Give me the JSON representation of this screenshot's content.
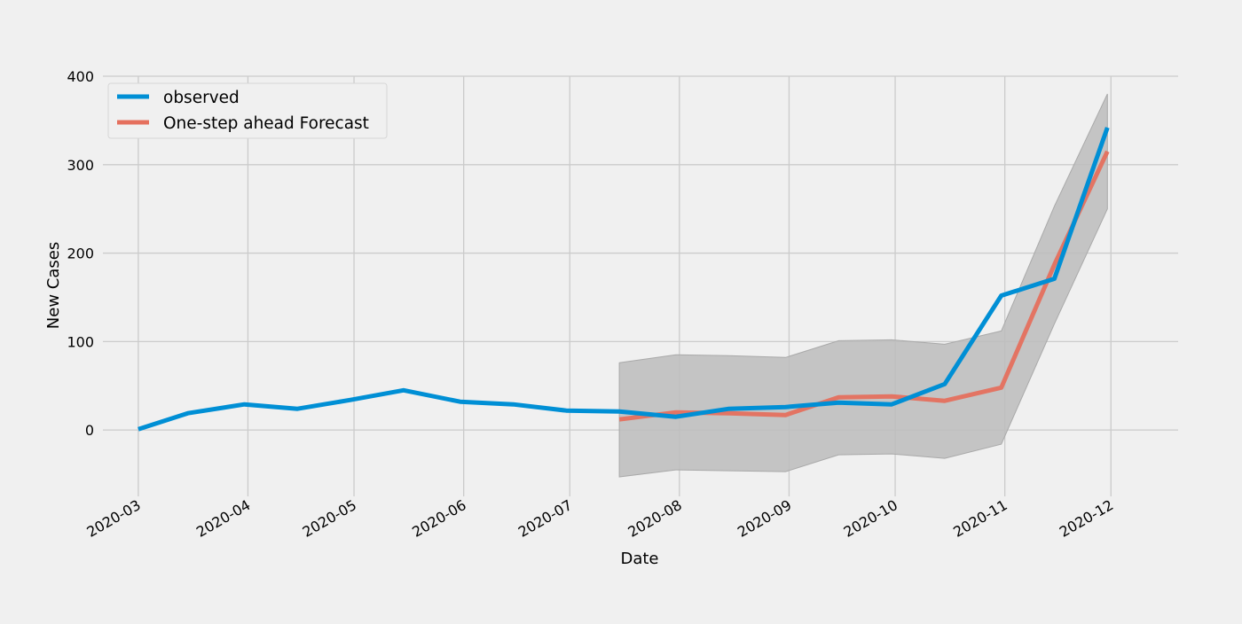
{
  "chart_data": {
    "type": "line",
    "title": "",
    "xlabel": "Date",
    "ylabel": "New Cases",
    "ylim": [
      -75,
      400
    ],
    "xlim": [
      "2020-02-20",
      "2020-12-20"
    ],
    "grid": true,
    "legend_position": "top-left",
    "x_ticks": [
      "2020-03",
      "2020-04",
      "2020-05",
      "2020-06",
      "2020-07",
      "2020-08",
      "2020-09",
      "2020-10",
      "2020-11",
      "2020-12"
    ],
    "y_ticks": [
      "0",
      "100",
      "200",
      "300",
      "400"
    ],
    "confidence_interval": {
      "x": [
        "2020-07-15",
        "2020-07-31",
        "2020-08-15",
        "2020-08-31",
        "2020-09-15",
        "2020-09-30",
        "2020-10-15",
        "2020-10-31",
        "2020-11-15",
        "2020-11-30"
      ],
      "lower": [
        -53,
        -45,
        -46,
        -47,
        -28,
        -27,
        -32,
        -16,
        120,
        250
      ],
      "upper": [
        76,
        85,
        84,
        82,
        101,
        102,
        97,
        112,
        253,
        380
      ],
      "color": "#bdbdbd"
    },
    "series": [
      {
        "name": "observed",
        "color": "#008fd5",
        "x": [
          "2020-03-01",
          "2020-03-15",
          "2020-03-31",
          "2020-04-15",
          "2020-04-30",
          "2020-05-15",
          "2020-05-31",
          "2020-06-15",
          "2020-06-30",
          "2020-07-15",
          "2020-07-31",
          "2020-08-15",
          "2020-08-31",
          "2020-09-15",
          "2020-09-30",
          "2020-10-15",
          "2020-10-31",
          "2020-11-15",
          "2020-11-30"
        ],
        "values": [
          1,
          19,
          29,
          24,
          34,
          45,
          32,
          29,
          22,
          21,
          15,
          24,
          26,
          31,
          29,
          52,
          152,
          171,
          342
        ]
      },
      {
        "name": "One-step ahead Forecast",
        "color": "#e5705e",
        "x": [
          "2020-07-15",
          "2020-07-31",
          "2020-08-15",
          "2020-08-31",
          "2020-09-15",
          "2020-09-30",
          "2020-10-15",
          "2020-10-31",
          "2020-11-15",
          "2020-11-30"
        ],
        "values": [
          12,
          20,
          19,
          17,
          37,
          38,
          33,
          48,
          187,
          315
        ]
      }
    ]
  }
}
